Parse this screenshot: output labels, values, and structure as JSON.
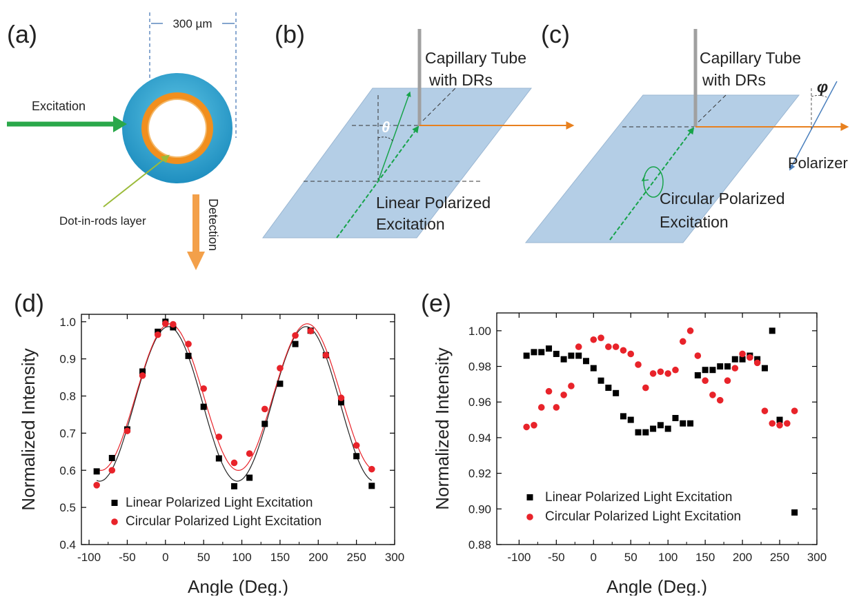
{
  "panels": {
    "a": {
      "label": "(a)",
      "scale_text": "300 µm",
      "excitation": "Excitation",
      "layer": "Dot-in-rods layer",
      "detection": "Detection"
    },
    "b": {
      "label": "(b)",
      "tube_line1": "Capillary Tube",
      "tube_line2": "with DRs",
      "theta": "θ",
      "exc_line1": "Linear Polarized",
      "exc_line2": "Excitation"
    },
    "c": {
      "label": "(c)",
      "tube_line1": "Capillary Tube",
      "tube_line2": "with DRs",
      "phi": "φ",
      "polarizer": "Polarizer",
      "exc_line1": "Circular Polarized",
      "exc_line2": "Excitation"
    }
  },
  "colors": {
    "linear": "#000000",
    "circular": "#e8232a",
    "fit_linear": "#222222",
    "fit_circular": "#e8232a"
  },
  "chart_data": [
    {
      "type": "scatter",
      "panel_label": "(d)",
      "xlabel": "Angle (Deg.)",
      "ylabel": "Normalized Intensity",
      "xlim": [
        -110,
        300
      ],
      "ylim": [
        0.4,
        1.02
      ],
      "xticks": [
        -100,
        -50,
        0,
        50,
        100,
        150,
        200,
        250,
        300
      ],
      "yticks": [
        0.4,
        0.5,
        0.6,
        0.7,
        0.8,
        0.9,
        1.0
      ],
      "xtick_labels": [
        "-100",
        "-50",
        "0",
        "50",
        "100",
        "150",
        "200",
        "250",
        "300"
      ],
      "ytick_labels": [
        "0.4",
        "0.5",
        "0.6",
        "0.7",
        "0.8",
        "0.9",
        "1.0"
      ],
      "legend_position": "bottom-left",
      "series": [
        {
          "name": "Linear Polarized Light Excitation",
          "marker": "square",
          "x": [
            -90,
            -70,
            -50,
            -30,
            -10,
            0,
            10,
            30,
            50,
            70,
            90,
            110,
            130,
            150,
            170,
            190,
            210,
            230,
            250,
            270
          ],
          "y": [
            0.597,
            0.633,
            0.71,
            0.866,
            0.973,
            1.0,
            0.985,
            0.908,
            0.771,
            0.632,
            0.557,
            0.58,
            0.725,
            0.833,
            0.94,
            0.976,
            0.91,
            0.783,
            0.638,
            0.558
          ]
        },
        {
          "name": "Circular Polarized Light Excitation",
          "marker": "circle",
          "x": [
            -90,
            -70,
            -50,
            -30,
            -10,
            0,
            10,
            30,
            50,
            70,
            90,
            110,
            130,
            150,
            170,
            190,
            210,
            230,
            250,
            270
          ],
          "y": [
            0.56,
            0.6,
            0.706,
            0.855,
            0.965,
            0.995,
            0.993,
            0.94,
            0.82,
            0.69,
            0.62,
            0.645,
            0.765,
            0.875,
            0.963,
            0.975,
            0.91,
            0.795,
            0.667,
            0.603
          ]
        }
      ]
    },
    {
      "type": "scatter",
      "panel_label": "(e)",
      "xlabel": "Angle (Deg.)",
      "ylabel": "Normalized Intensity",
      "xlim": [
        -130,
        300
      ],
      "ylim": [
        0.88,
        1.01
      ],
      "xticks": [
        -100,
        -50,
        0,
        50,
        100,
        150,
        200,
        250,
        300
      ],
      "yticks": [
        0.88,
        0.9,
        0.92,
        0.94,
        0.96,
        0.98,
        1.0
      ],
      "xtick_labels": [
        "-100",
        "-50",
        "0",
        "50",
        "100",
        "150",
        "200",
        "250",
        "300"
      ],
      "ytick_labels": [
        "0.88",
        "0.90",
        "0.92",
        "0.94",
        "0.96",
        "0.98",
        "1.00"
      ],
      "legend_position": "bottom-left",
      "series": [
        {
          "name": "Linear Polarized Light Excitation",
          "marker": "square",
          "x": [
            -90,
            -80,
            -70,
            -60,
            -50,
            -40,
            -30,
            -20,
            -10,
            0,
            10,
            20,
            30,
            40,
            50,
            60,
            70,
            80,
            90,
            100,
            110,
            120,
            130,
            140,
            150,
            160,
            170,
            180,
            190,
            200,
            210,
            220,
            230,
            240,
            250,
            270
          ],
          "y": [
            0.986,
            0.988,
            0.988,
            0.99,
            0.987,
            0.984,
            0.986,
            0.986,
            0.983,
            0.979,
            0.972,
            0.968,
            0.965,
            0.952,
            0.95,
            0.943,
            0.943,
            0.945,
            0.947,
            0.945,
            0.951,
            0.948,
            0.948,
            0.975,
            0.978,
            0.978,
            0.98,
            0.98,
            0.984,
            0.984,
            0.986,
            0.984,
            0.979,
            1.0,
            0.95,
            0.898
          ]
        },
        {
          "name": "Circular Polarized Light Excitation",
          "marker": "circle",
          "x": [
            -90,
            -80,
            -70,
            -60,
            -50,
            -40,
            -30,
            -20,
            0,
            10,
            20,
            30,
            40,
            50,
            60,
            70,
            80,
            90,
            100,
            110,
            120,
            130,
            140,
            150,
            160,
            170,
            180,
            190,
            200,
            210,
            220,
            230,
            240,
            250,
            260,
            270
          ],
          "y": [
            0.946,
            0.947,
            0.957,
            0.966,
            0.957,
            0.964,
            0.969,
            0.991,
            0.995,
            0.996,
            0.991,
            0.991,
            0.989,
            0.987,
            0.981,
            0.968,
            0.976,
            0.977,
            0.976,
            0.978,
            0.994,
            1.0,
            0.986,
            0.972,
            0.964,
            0.961,
            0.972,
            0.979,
            0.987,
            0.985,
            0.982,
            0.955,
            0.948,
            0.947,
            0.948,
            0.955
          ]
        }
      ]
    }
  ]
}
